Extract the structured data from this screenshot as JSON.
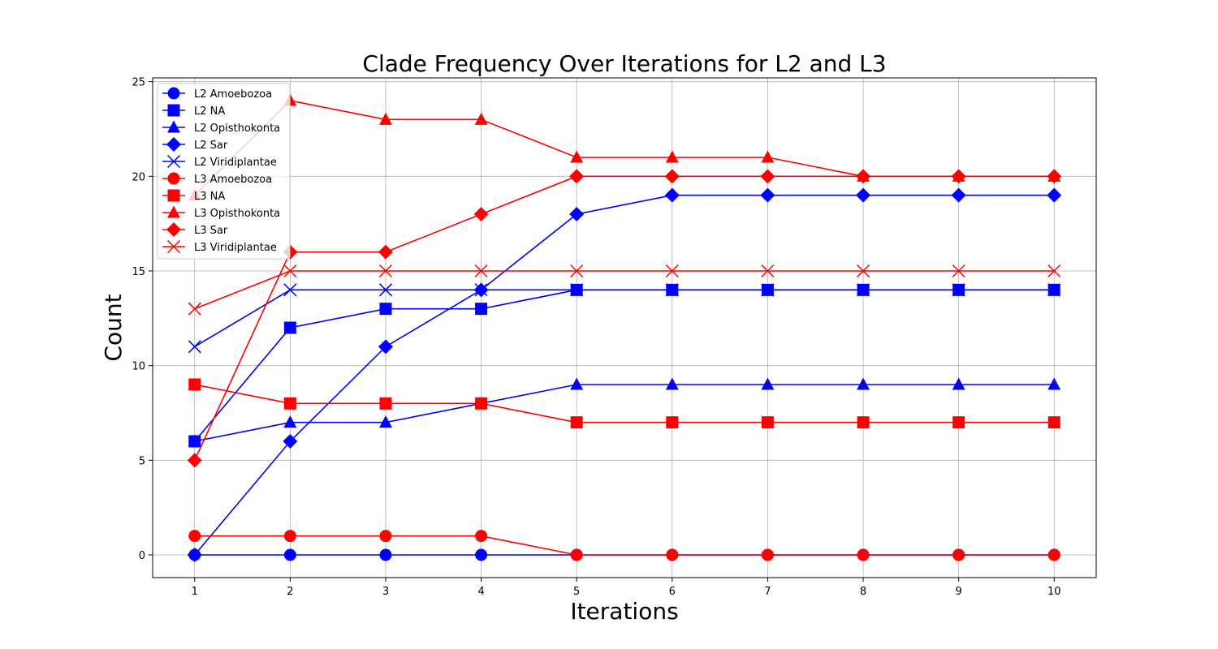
{
  "chart_data": {
    "type": "line",
    "title": "Clade Frequency Over Iterations for L2 and L3",
    "xlabel": "Iterations",
    "ylabel": "Count",
    "x": [
      1,
      2,
      3,
      4,
      5,
      6,
      7,
      8,
      9,
      10
    ],
    "xlim": [
      0.56,
      10.44
    ],
    "ylim": [
      -1.2,
      25.2
    ],
    "xticks": [
      1,
      2,
      3,
      4,
      5,
      6,
      7,
      8,
      9,
      10
    ],
    "yticks": [
      0,
      5,
      10,
      15,
      20,
      25
    ],
    "grid": true,
    "legend_position": "upper-left",
    "colors": {
      "L2": "#0000ff",
      "L3": "#ff0000"
    },
    "series": [
      {
        "name": "L2 Amoebozoa",
        "color": "#0000ff",
        "marker": "circle",
        "values": [
          0,
          0,
          0,
          0,
          0,
          0,
          0,
          0,
          0,
          0
        ]
      },
      {
        "name": "L2 NA",
        "color": "#0000ff",
        "marker": "square",
        "values": [
          6,
          12,
          13,
          13,
          14,
          14,
          14,
          14,
          14,
          14
        ]
      },
      {
        "name": "L2 Opisthokonta",
        "color": "#0000ff",
        "marker": "triangle",
        "values": [
          6,
          7,
          7,
          8,
          9,
          9,
          9,
          9,
          9,
          9
        ]
      },
      {
        "name": "L2 Sar",
        "color": "#0000ff",
        "marker": "diamond",
        "values": [
          0,
          6,
          11,
          14,
          18,
          19,
          19,
          19,
          19,
          19
        ]
      },
      {
        "name": "L2 Viridiplantae",
        "color": "#0000ff",
        "marker": "x",
        "values": [
          11,
          14,
          14,
          14,
          14,
          14,
          14,
          14,
          14,
          14
        ]
      },
      {
        "name": "L3 Amoebozoa",
        "color": "#ff0000",
        "marker": "circle",
        "values": [
          1,
          1,
          1,
          1,
          0,
          0,
          0,
          0,
          0,
          0
        ]
      },
      {
        "name": "L3 NA",
        "color": "#ff0000",
        "marker": "square",
        "values": [
          9,
          8,
          8,
          8,
          7,
          7,
          7,
          7,
          7,
          7
        ]
      },
      {
        "name": "L3 Opisthokonta",
        "color": "#ff0000",
        "marker": "triangle",
        "values": [
          19,
          24,
          23,
          23,
          21,
          21,
          21,
          20,
          20,
          20
        ]
      },
      {
        "name": "L3 Sar",
        "color": "#ff0000",
        "marker": "diamond",
        "values": [
          5,
          16,
          16,
          18,
          20,
          20,
          20,
          20,
          20,
          20
        ]
      },
      {
        "name": "L3 Viridiplantae",
        "color": "#ff0000",
        "marker": "x",
        "values": [
          13,
          15,
          15,
          15,
          15,
          15,
          15,
          15,
          15,
          15
        ]
      }
    ]
  }
}
